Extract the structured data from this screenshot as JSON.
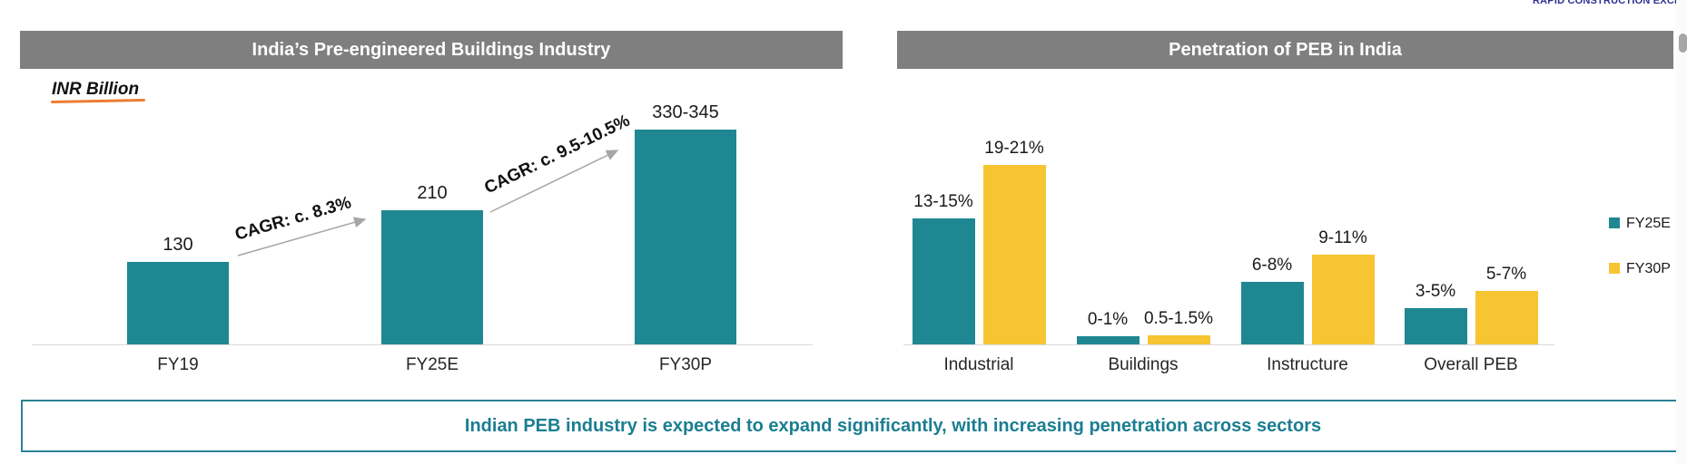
{
  "logo": {
    "text": "RAPID CONSTRUCTION EXCEEDING EX"
  },
  "banner": {
    "text": "Indian PEB industry is expected to expand significantly, with increasing penetration across sectors"
  },
  "colors": {
    "teal": "#1F8792",
    "yellow": "#F7C432",
    "header_gray": "#7F7F7F",
    "banner_teal": "#1B7E91",
    "arrow_gray": "#A6A6A6",
    "axis_gray": "#D9D9D9",
    "logo_navy": "#2E3192",
    "underline_orange": "#ED7D31",
    "scrollbar_gray": "#A6A6A6"
  },
  "chart_data": [
    {
      "type": "bar",
      "title": "India’s Pre-engineered Buildings Industry",
      "unit_label": "INR Billion",
      "ylabel": "INR Billion",
      "categories": [
        "FY19",
        "FY25E",
        "FY30P"
      ],
      "values": [
        130,
        210,
        337.5
      ],
      "value_labels": [
        "130",
        "210",
        "330-345"
      ],
      "ylim": [
        0,
        360
      ],
      "grid": false,
      "annotations": [
        {
          "label": "CAGR: c. 8.3%"
        },
        {
          "label": "CAGR: c. 9.5-10.5%"
        }
      ]
    },
    {
      "type": "bar",
      "title": "Penetration of PEB in India",
      "categories": [
        "Industrial",
        "Buildings",
        "Instructure",
        "Overall PEB"
      ],
      "series": [
        {
          "name": "FY25E",
          "values": [
            14,
            0.5,
            7,
            4
          ],
          "value_labels": [
            "13-15%",
            "0-1%",
            "6-8%",
            "3-5%"
          ],
          "color": "#1F8792"
        },
        {
          "name": "FY30P",
          "values": [
            20,
            1,
            10,
            6
          ],
          "value_labels": [
            "19-21%",
            "0.5-1.5%",
            "9-11%",
            "5-7%"
          ],
          "color": "#F7C432"
        }
      ],
      "ylim": [
        0,
        22
      ],
      "grid": false,
      "legend_position": "right"
    }
  ]
}
